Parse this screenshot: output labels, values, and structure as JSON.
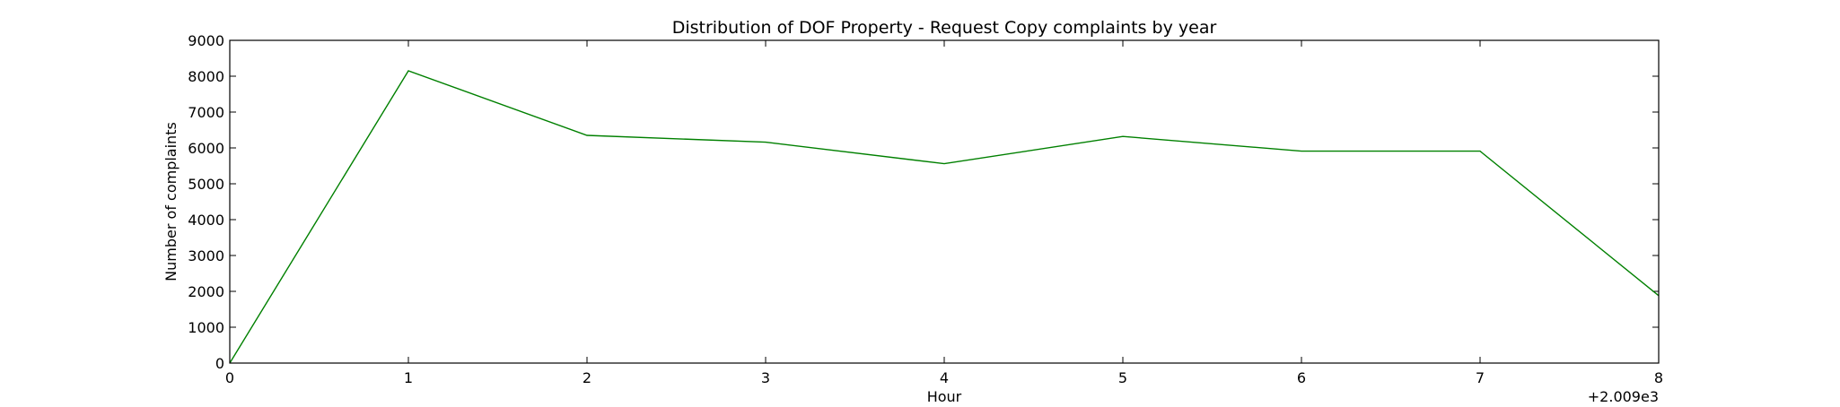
{
  "chart_data": {
    "type": "line",
    "title": "Distribution of  DOF Property - Request Copy complaints by year",
    "xlabel": "Hour",
    "ylabel": "Number of complaints",
    "x_offset_label": "+2.009e3",
    "xlim": [
      0,
      8
    ],
    "ylim": [
      0,
      9000
    ],
    "x_ticks": [
      0,
      1,
      2,
      3,
      4,
      5,
      6,
      7,
      8
    ],
    "y_ticks": [
      0,
      1000,
      2000,
      3000,
      4000,
      5000,
      6000,
      7000,
      8000,
      9000
    ],
    "grid": false,
    "series": [
      {
        "color": "#008000",
        "x": [
          0,
          1,
          2,
          3,
          4,
          5,
          6,
          7,
          8
        ],
        "y": [
          0,
          8150,
          6350,
          6160,
          5560,
          6320,
          5910,
          5910,
          1880
        ]
      }
    ]
  }
}
